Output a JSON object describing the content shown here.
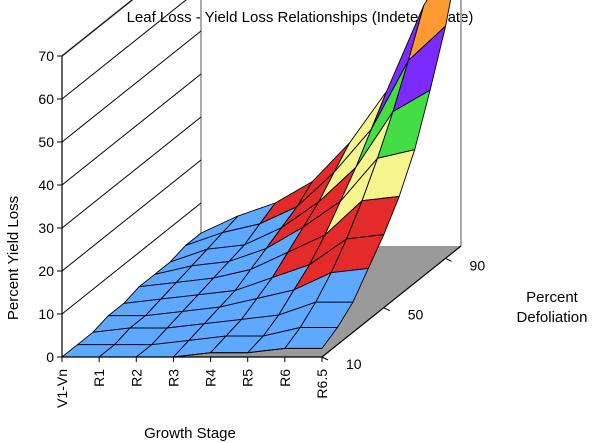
{
  "chart_data": {
    "type": "surface-3d",
    "title": "Leaf Loss - Yield Loss Relationships (Indeterminate)",
    "xlabel": "Growth Stage",
    "ylabel": "Percent Yield Loss",
    "zlabel_lines": [
      "Percent",
      "Defoliation"
    ],
    "x_categories": [
      "V1-Vn",
      "R1",
      "R2",
      "R3",
      "R4",
      "R5",
      "R6",
      "R6.5"
    ],
    "defoliation_levels": [
      10,
      20,
      30,
      40,
      50,
      60,
      70,
      80,
      90,
      100
    ],
    "defoliation_tick_labels": [
      "10",
      "50",
      "90"
    ],
    "yield_ticks": [
      "0",
      "10",
      "20",
      "30",
      "40",
      "50",
      "60",
      "70"
    ],
    "ylim": [
      0,
      70
    ],
    "color_bands": [
      {
        "from": 0,
        "to": 10,
        "color": "#5fa8ff"
      },
      {
        "from": 10,
        "to": 20,
        "color": "#e32b2b"
      },
      {
        "from": 20,
        "to": 30,
        "color": "#f5f58e"
      },
      {
        "from": 30,
        "to": 40,
        "color": "#45dd45"
      },
      {
        "from": 40,
        "to": 50,
        "color": "#7b2bff"
      },
      {
        "from": 50,
        "to": 60,
        "color": "#ff9933"
      },
      {
        "from": 60,
        "to": 70,
        "color": "#8b5050"
      }
    ],
    "yield_loss": [
      [
        0,
        0,
        0,
        1,
        1,
        2,
        2,
        2,
        3,
        3
      ],
      [
        0,
        0,
        1,
        1,
        2,
        3,
        4,
        5,
        6,
        7
      ],
      [
        0,
        0,
        1,
        2,
        3,
        4,
        5,
        6,
        8,
        10
      ],
      [
        0,
        1,
        2,
        3,
        4,
        6,
        8,
        10,
        12,
        15
      ],
      [
        1,
        2,
        3,
        5,
        7,
        10,
        13,
        16,
        20,
        24
      ],
      [
        1,
        2,
        4,
        7,
        10,
        14,
        19,
        24,
        30,
        36
      ],
      [
        2,
        4,
        7,
        11,
        16,
        22,
        29,
        37,
        46,
        56
      ],
      [
        2,
        4,
        7,
        12,
        17,
        23,
        31,
        42,
        54,
        70
      ]
    ]
  }
}
